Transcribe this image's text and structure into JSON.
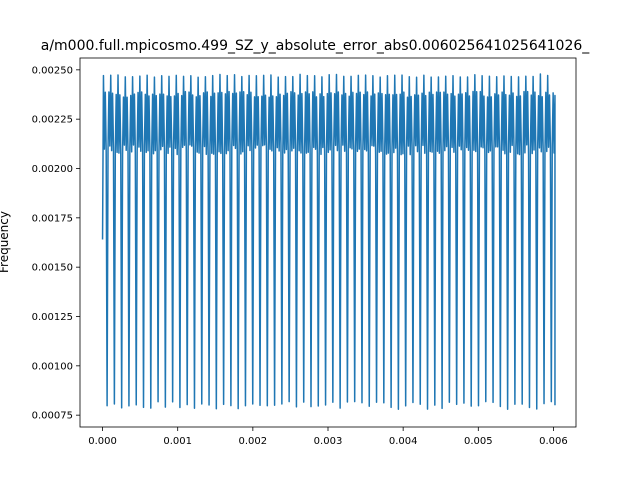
{
  "chart_data": {
    "type": "line",
    "title": "a/m000.full.mpicosmo.499_SZ_y_absolute_error_abs0.006025641025641026_",
    "xlabel": "",
    "ylabel": "Frequency",
    "xlim": [
      -0.0003,
      0.0063
    ],
    "ylim": [
      0.00069,
      0.00256
    ],
    "x_ticks": [
      0.0,
      0.001,
      0.002,
      0.003,
      0.004,
      0.005,
      0.006
    ],
    "x_tick_labels": [
      "0.000",
      "0.001",
      "0.002",
      "0.003",
      "0.004",
      "0.005",
      "0.006"
    ],
    "y_ticks": [
      0.00075,
      0.001,
      0.00125,
      0.0015,
      0.00175,
      0.002,
      0.00225,
      0.0025
    ],
    "y_tick_labels": [
      "0.00075",
      "0.00100",
      "0.00125",
      "0.00150",
      "0.00175",
      "0.00200",
      "0.00225",
      "0.00250"
    ],
    "grid": false,
    "legend": "none",
    "series": [
      {
        "color": "#1f77b4",
        "x_start": 0.0,
        "x_end": 0.00602,
        "start_value": 0.00164,
        "end_value": 0.0008,
        "band_high": 0.00239,
        "band_low": 0.00207,
        "spike_high": 0.00248,
        "dip_low": 0.00078,
        "spike_count": 62,
        "dip_count": 62,
        "points_per_cycle": 8
      }
    ]
  }
}
